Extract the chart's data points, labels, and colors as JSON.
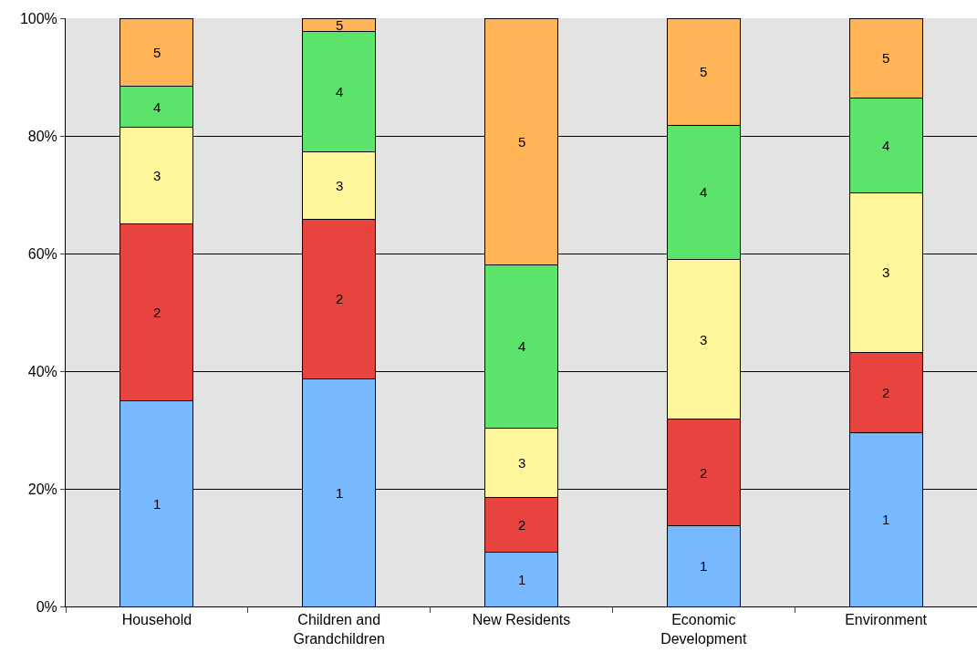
{
  "chart_data": {
    "type": "bar",
    "stacked": true,
    "categories": [
      "Household",
      "Children and Grandchildren",
      "New Residents",
      "Economic Development",
      "Environment"
    ],
    "series": [
      {
        "name": "1",
        "color": "#77b8ff",
        "values": [
          35.0,
          38.7,
          9.3,
          13.7,
          29.5
        ]
      },
      {
        "name": "2",
        "color": "#e8443f",
        "values": [
          30.1,
          27.1,
          9.2,
          18.1,
          13.7
        ]
      },
      {
        "name": "3",
        "color": "#fff59b",
        "values": [
          16.3,
          11.5,
          11.8,
          27.2,
          27.1
        ]
      },
      {
        "name": "4",
        "color": "#5ce36b",
        "values": [
          7.0,
          20.4,
          27.8,
          22.8,
          16.2
        ]
      },
      {
        "name": "5",
        "color": "#ffb458",
        "values": [
          11.6,
          2.3,
          41.9,
          18.2,
          13.5
        ]
      }
    ],
    "ylim": [
      0,
      100
    ],
    "yticks": [
      {
        "value": 0,
        "label": "0%"
      },
      {
        "value": 20,
        "label": "20%"
      },
      {
        "value": 40,
        "label": "40%"
      },
      {
        "value": 60,
        "label": "60%"
      },
      {
        "value": 80,
        "label": "80%"
      },
      {
        "value": 100,
        "label": "100%"
      }
    ],
    "grid": "y",
    "legend": false
  }
}
